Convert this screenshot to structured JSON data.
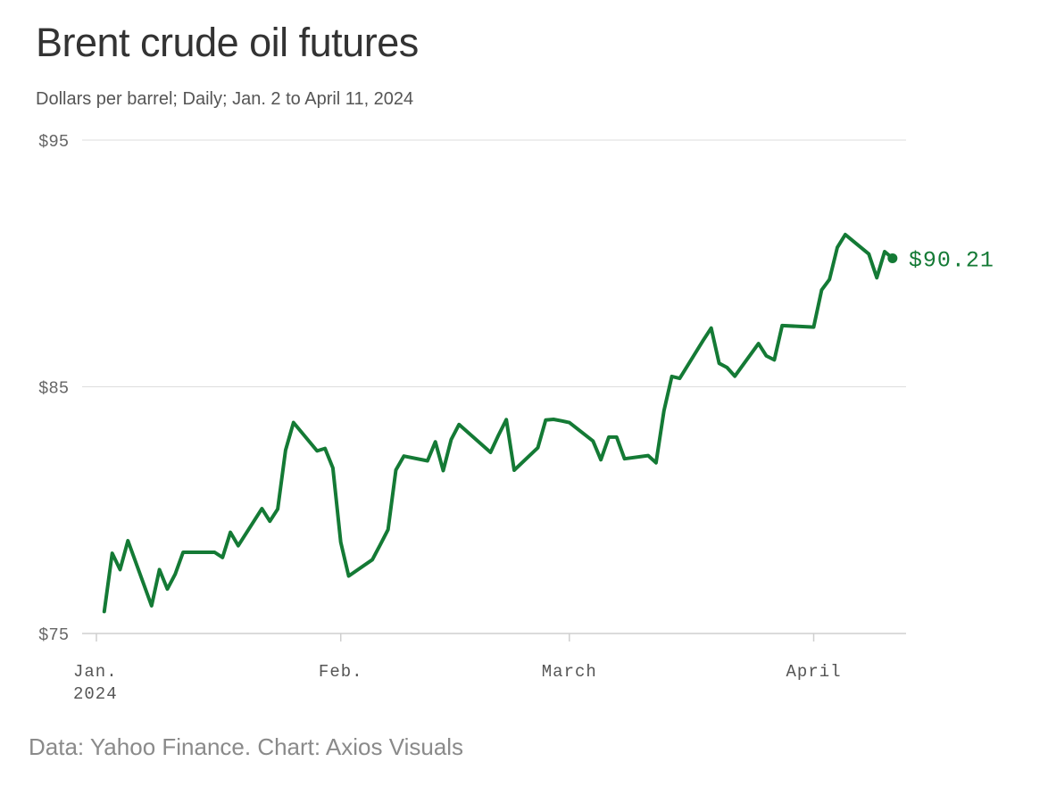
{
  "title": "Brent crude oil futures",
  "subtitle": "Dollars per barrel; Daily; Jan. 2 to April 11, 2024",
  "source": "Data: Yahoo Finance. Chart: Axios Visuals",
  "colors": {
    "line": "#147a35",
    "grid": "#dddddd",
    "axis_text": "#555555"
  },
  "chart_data": {
    "type": "line",
    "title": "Brent crude oil futures",
    "subtitle": "Dollars per barrel; Daily; Jan. 2 to April 11, 2024",
    "xlim": [
      "2024-01-01",
      "2024-04-11"
    ],
    "ylim": [
      75,
      95
    ],
    "grid": true,
    "yticks": [
      {
        "value": 95,
        "label": "$95"
      },
      {
        "value": 85,
        "label": "$85"
      },
      {
        "value": 75,
        "label": "$75"
      }
    ],
    "xticks": [
      {
        "date": "2024-01-01",
        "label": "Jan.",
        "sublabel": "2024"
      },
      {
        "date": "2024-02-01",
        "label": "Feb.",
        "sublabel": ""
      },
      {
        "date": "2024-03-01",
        "label": "March",
        "sublabel": ""
      },
      {
        "date": "2024-04-01",
        "label": "April",
        "sublabel": ""
      }
    ],
    "series": [
      {
        "x": [
          "2024-01-02",
          "2024-01-03",
          "2024-01-04",
          "2024-01-05",
          "2024-01-08",
          "2024-01-09",
          "2024-01-10",
          "2024-01-11",
          "2024-01-12",
          "2024-01-16",
          "2024-01-17",
          "2024-01-18",
          "2024-01-19",
          "2024-01-22",
          "2024-01-23",
          "2024-01-24",
          "2024-01-25",
          "2024-01-26",
          "2024-01-29",
          "2024-01-30",
          "2024-01-31",
          "2024-02-01",
          "2024-02-02",
          "2024-02-05",
          "2024-02-06",
          "2024-02-07",
          "2024-02-08",
          "2024-02-09",
          "2024-02-12",
          "2024-02-13",
          "2024-02-14",
          "2024-02-15",
          "2024-02-16",
          "2024-02-20",
          "2024-02-21",
          "2024-02-22",
          "2024-02-23",
          "2024-02-26",
          "2024-02-27",
          "2024-02-28",
          "2024-02-29",
          "2024-03-01",
          "2024-03-04",
          "2024-03-05",
          "2024-03-06",
          "2024-03-07",
          "2024-03-08",
          "2024-03-11",
          "2024-03-12",
          "2024-03-13",
          "2024-03-14",
          "2024-03-15",
          "2024-03-18",
          "2024-03-19",
          "2024-03-20",
          "2024-03-21",
          "2024-03-22",
          "2024-03-25",
          "2024-03-26",
          "2024-03-27",
          "2024-03-28",
          "2024-04-01",
          "2024-04-02",
          "2024-04-03",
          "2024-04-04",
          "2024-04-05",
          "2024-04-08",
          "2024-04-09",
          "2024-04-10",
          "2024-04-11"
        ],
        "values": [
          75.89,
          78.25,
          77.59,
          78.76,
          76.12,
          77.59,
          76.8,
          77.41,
          78.29,
          78.29,
          78.08,
          79.1,
          78.56,
          80.06,
          79.55,
          80.04,
          82.43,
          83.55,
          82.4,
          82.5,
          81.71,
          78.7,
          77.33,
          77.99,
          78.59,
          79.21,
          81.63,
          82.19,
          82.0,
          82.77,
          81.6,
          82.86,
          83.47,
          82.34,
          83.03,
          83.67,
          81.62,
          82.53,
          83.65,
          83.68,
          83.62,
          83.55,
          82.8,
          82.04,
          82.96,
          82.96,
          82.08,
          82.21,
          81.92,
          84.03,
          85.42,
          85.34,
          86.89,
          87.38,
          85.95,
          85.78,
          85.43,
          86.75,
          86.25,
          86.09,
          87.48,
          87.42,
          88.92,
          89.35,
          90.65,
          91.17,
          90.38,
          89.42,
          90.48,
          90.21
        ]
      }
    ],
    "end_label": "$90.21"
  }
}
